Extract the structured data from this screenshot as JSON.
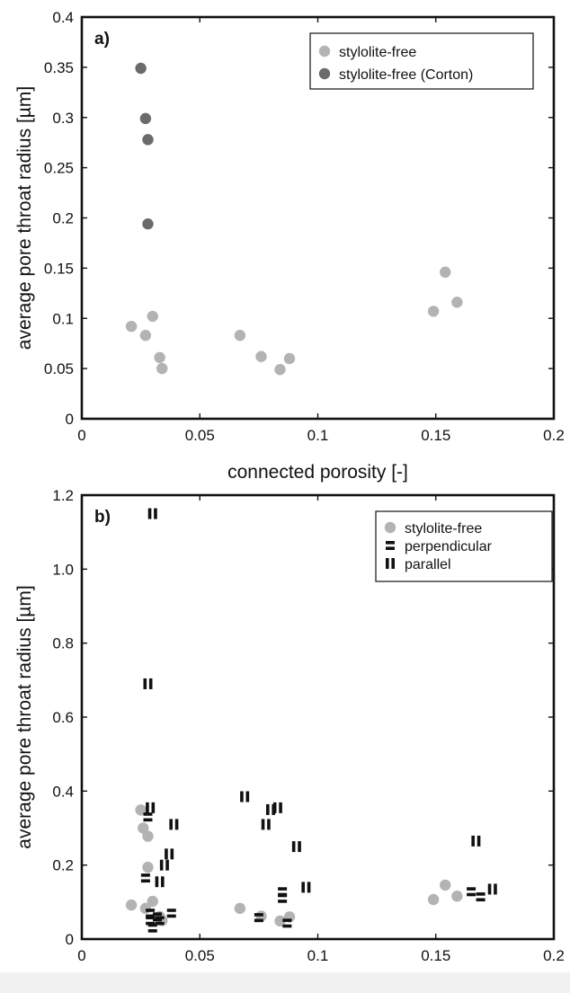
{
  "colors": {
    "stylolite_free": "#b3b3b3",
    "stylolite_free_corton": "#6b6b6b",
    "perpendicular": "#111111",
    "parallel": "#111111",
    "axis": "#111111"
  },
  "chart_data": [
    {
      "type": "scatter",
      "panel_label": "a)",
      "xlabel": "connected porosity [-]",
      "ylabel": "average pore throat radius [µm]",
      "xlim": [
        0,
        0.2
      ],
      "ylim": [
        0,
        0.4
      ],
      "xticks": [
        0,
        0.05,
        0.1,
        0.15,
        0.2
      ],
      "xtick_labels": [
        "0",
        "0.05",
        "0.1",
        "0.15",
        "0.2"
      ],
      "yticks": [
        0,
        0.05,
        0.1,
        0.15,
        0.2,
        0.25,
        0.3,
        0.35,
        0.4
      ],
      "ytick_labels": [
        "0",
        "0.05",
        "0.1",
        "0.15",
        "0.2",
        "0.25",
        "0.3",
        "0.35",
        "0.4"
      ],
      "grid": false,
      "legend_position": "top-right",
      "series": [
        {
          "name": "stylolite-free",
          "marker": "circle",
          "color": "#b3b3b3",
          "points": [
            [
              0.021,
              0.092
            ],
            [
              0.027,
              0.083
            ],
            [
              0.03,
              0.102
            ],
            [
              0.033,
              0.061
            ],
            [
              0.034,
              0.05
            ],
            [
              0.067,
              0.083
            ],
            [
              0.076,
              0.062
            ],
            [
              0.084,
              0.049
            ],
            [
              0.088,
              0.06
            ],
            [
              0.149,
              0.107
            ],
            [
              0.154,
              0.146
            ],
            [
              0.159,
              0.116
            ]
          ]
        },
        {
          "name": "stylolite-free (Corton)",
          "marker": "circle",
          "color": "#6b6b6b",
          "points": [
            [
              0.025,
              0.349
            ],
            [
              0.027,
              0.299
            ],
            [
              0.028,
              0.278
            ],
            [
              0.028,
              0.194
            ]
          ]
        }
      ]
    },
    {
      "type": "scatter",
      "panel_label": "b)",
      "xlabel": "connected porosity [-]",
      "ylabel": "average pore throat radius [µm]",
      "xlim": [
        0,
        0.2
      ],
      "ylim": [
        0,
        1.2
      ],
      "xticks": [
        0,
        0.05,
        0.1,
        0.15,
        0.2
      ],
      "xtick_labels": [
        "0",
        "0.05",
        "0.1",
        "0.15",
        "0.2"
      ],
      "yticks": [
        0,
        0.2,
        0.4,
        0.6,
        0.8,
        1.0,
        1.2
      ],
      "ytick_labels": [
        "0",
        "0.2",
        "0.4",
        "0.6",
        "0.8",
        "1.0",
        "1.2"
      ],
      "grid": false,
      "legend_position": "top-right",
      "series": [
        {
          "name": "stylolite-free",
          "marker": "circle",
          "color": "#b3b3b3",
          "points": [
            [
              0.021,
              0.092
            ],
            [
              0.025,
              0.349
            ],
            [
              0.026,
              0.3
            ],
            [
              0.027,
              0.083
            ],
            [
              0.028,
              0.278
            ],
            [
              0.028,
              0.194
            ],
            [
              0.03,
              0.102
            ],
            [
              0.033,
              0.061
            ],
            [
              0.034,
              0.05
            ],
            [
              0.067,
              0.083
            ],
            [
              0.076,
              0.062
            ],
            [
              0.084,
              0.049
            ],
            [
              0.088,
              0.06
            ],
            [
              0.149,
              0.107
            ],
            [
              0.154,
              0.146
            ],
            [
              0.159,
              0.116
            ]
          ]
        },
        {
          "name": "perpendicular",
          "marker": "perpendicular",
          "color": "#111111",
          "points": [
            [
              0.027,
              0.165
            ],
            [
              0.028,
              0.33
            ],
            [
              0.029,
              0.07
            ],
            [
              0.029,
              0.05
            ],
            [
              0.03,
              0.03
            ],
            [
              0.032,
              0.06
            ],
            [
              0.033,
              0.05
            ],
            [
              0.038,
              0.07
            ],
            [
              0.075,
              0.058
            ],
            [
              0.085,
              0.128
            ],
            [
              0.085,
              0.11
            ],
            [
              0.087,
              0.043
            ],
            [
              0.165,
              0.128
            ],
            [
              0.169,
              0.114
            ]
          ]
        },
        {
          "name": "parallel",
          "marker": "parallel",
          "color": "#111111",
          "points": [
            [
              0.028,
              0.69
            ],
            [
              0.029,
              0.355
            ],
            [
              0.03,
              1.15
            ],
            [
              0.033,
              0.155
            ],
            [
              0.035,
              0.2
            ],
            [
              0.037,
              0.23
            ],
            [
              0.039,
              0.31
            ],
            [
              0.069,
              0.385
            ],
            [
              0.078,
              0.31
            ],
            [
              0.08,
              0.35
            ],
            [
              0.083,
              0.355
            ],
            [
              0.091,
              0.25
            ],
            [
              0.095,
              0.14
            ],
            [
              0.167,
              0.265
            ],
            [
              0.174,
              0.135
            ]
          ]
        }
      ]
    }
  ]
}
